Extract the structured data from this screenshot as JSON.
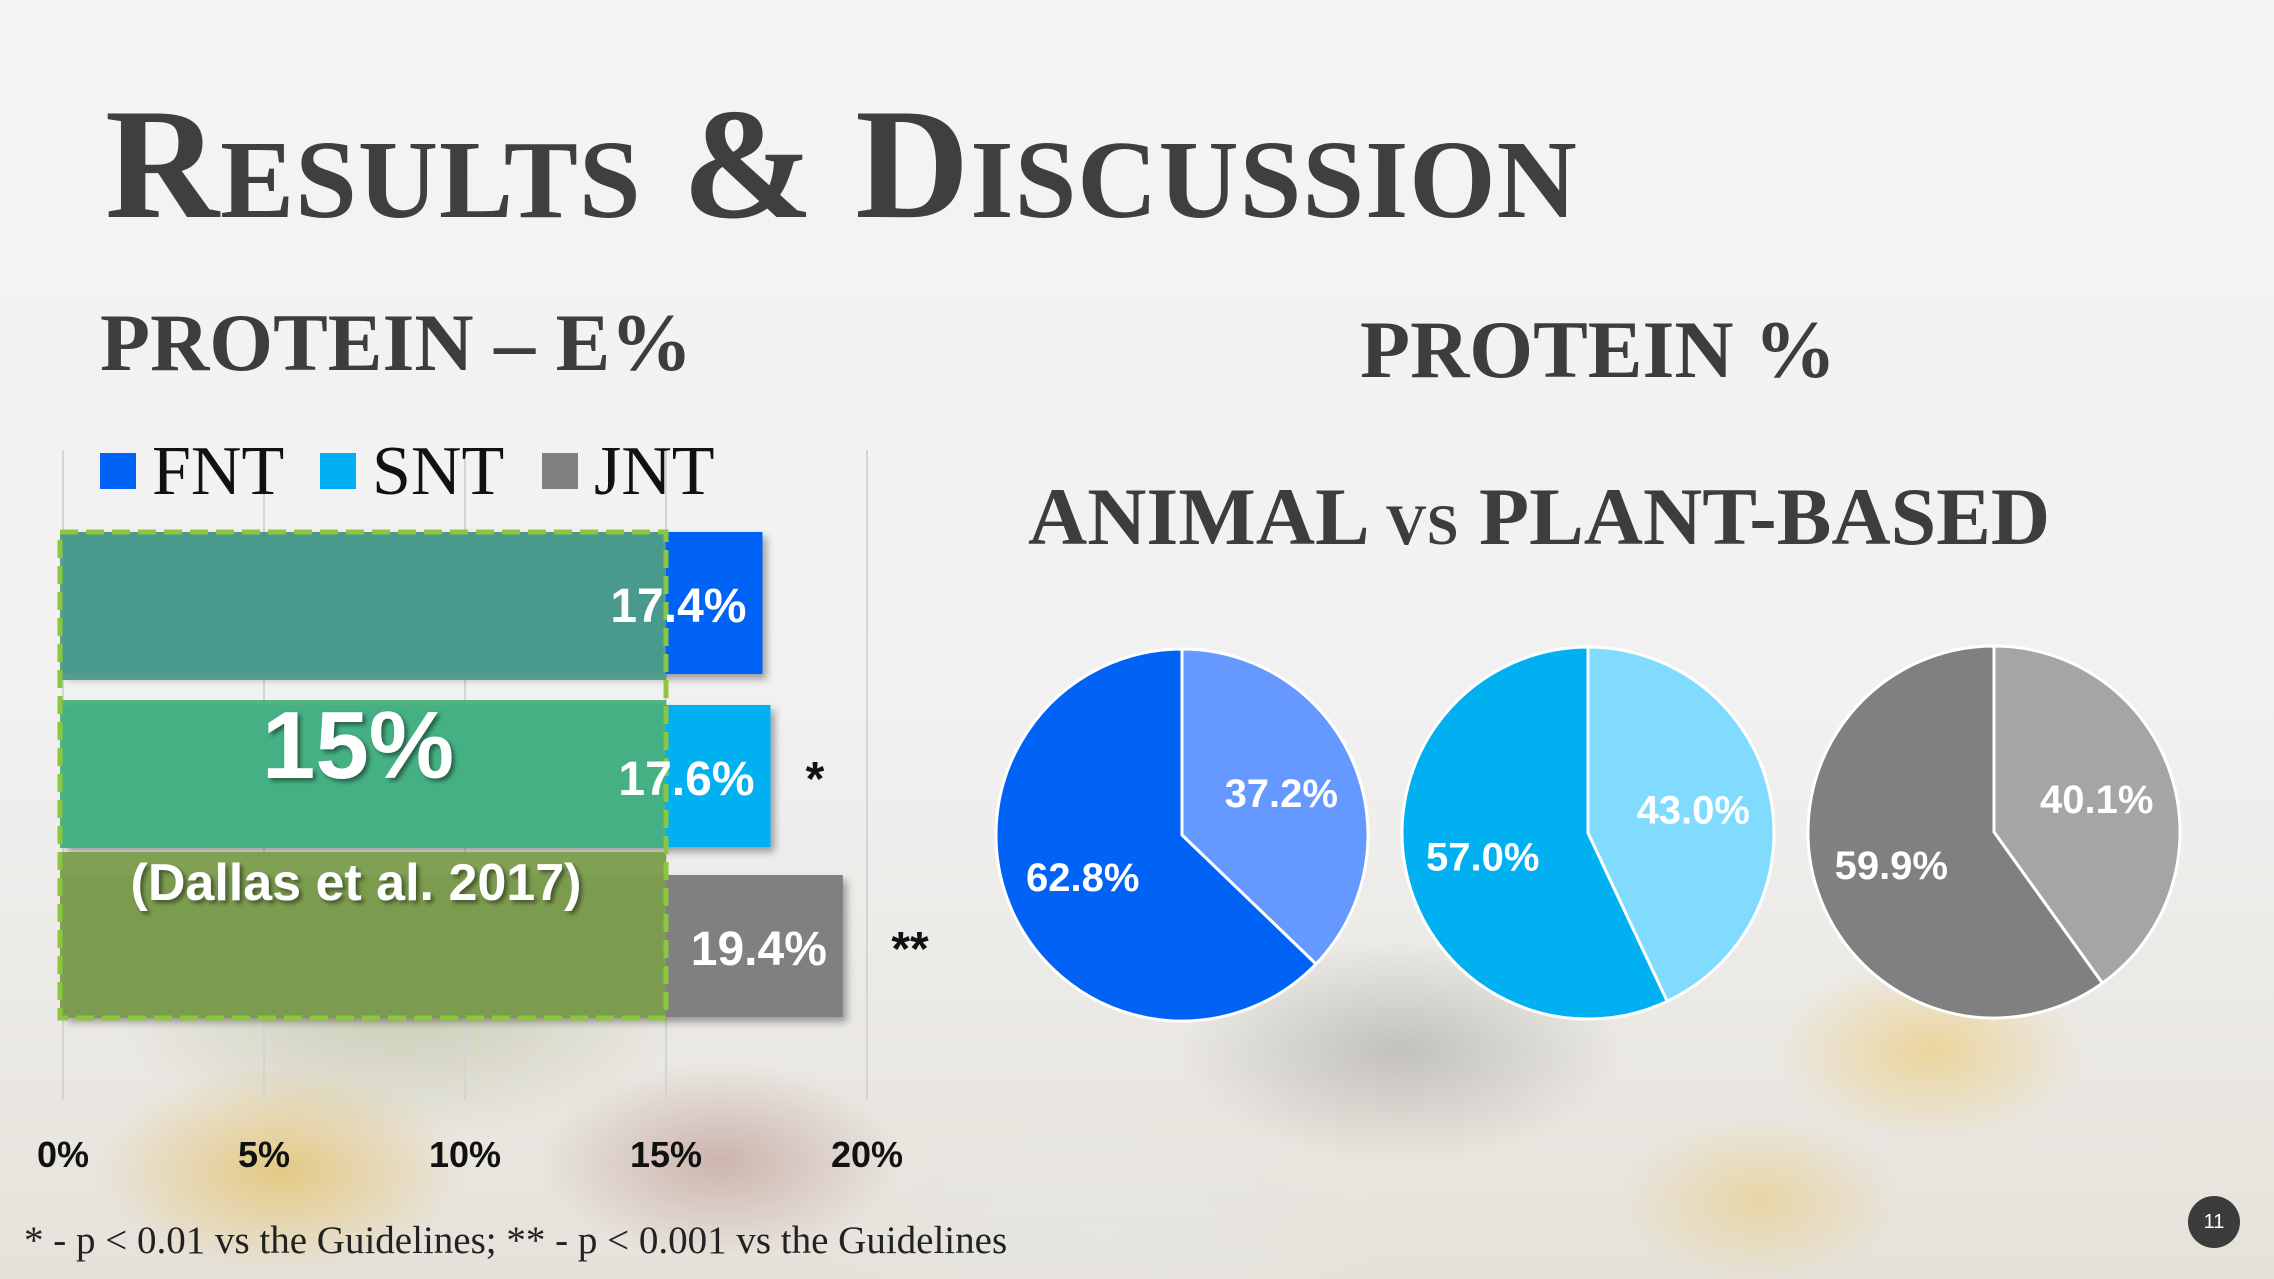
{
  "slide": {
    "title": "Results & Discussion",
    "left_heading": "PROTEIN – E%",
    "right_heading": "PROTEIN %",
    "right_subheading_a": "ANIMAL",
    "right_subheading_vs": "vs",
    "right_subheading_b": "PLANT-BASED",
    "footnote": "* - p < 0.01 vs the Guidelines; ** - p < 0.001 vs the Guidelines",
    "page_number": "11"
  },
  "colors": {
    "fnt": "#0063f5",
    "snt": "#00b0f0",
    "jnt": "#808080",
    "fnt_light": "#6699ff",
    "snt_light": "#80dbff",
    "jnt_light": "#a5a5a5",
    "overlay": "#5aa63c"
  },
  "chart_data": [
    {
      "type": "bar",
      "orientation": "horizontal",
      "categories": [
        "FNT",
        "SNT",
        "JNT"
      ],
      "values": [
        17.4,
        17.6,
        19.4
      ],
      "value_labels": [
        "17.4%",
        "17.6%",
        "19.4%"
      ],
      "significance": [
        "",
        "*",
        "**"
      ],
      "xlim": [
        0,
        20
      ],
      "x_ticks": [
        "0%",
        "5%",
        "10%",
        "15%",
        "20%"
      ],
      "legend": [
        "FNT",
        "SNT",
        "JNT"
      ],
      "legend_position": "top",
      "grid": true,
      "reference_band": {
        "value": 15,
        "label": "15%",
        "source": "(Dallas et al. 2017)"
      }
    },
    {
      "type": "pie",
      "group": "FNT",
      "slices": [
        {
          "value": 62.8,
          "label": "62.8%",
          "kind": "dark"
        },
        {
          "value": 37.2,
          "label": "37.2%",
          "kind": "light"
        }
      ]
    },
    {
      "type": "pie",
      "group": "SNT",
      "slices": [
        {
          "value": 57.0,
          "label": "57.0%",
          "kind": "dark"
        },
        {
          "value": 43.0,
          "label": "43.0%",
          "kind": "light"
        }
      ]
    },
    {
      "type": "pie",
      "group": "JNT",
      "slices": [
        {
          "value": 59.9,
          "label": "59.9%",
          "kind": "dark"
        },
        {
          "value": 40.1,
          "label": "40.1%",
          "kind": "light"
        }
      ]
    }
  ]
}
